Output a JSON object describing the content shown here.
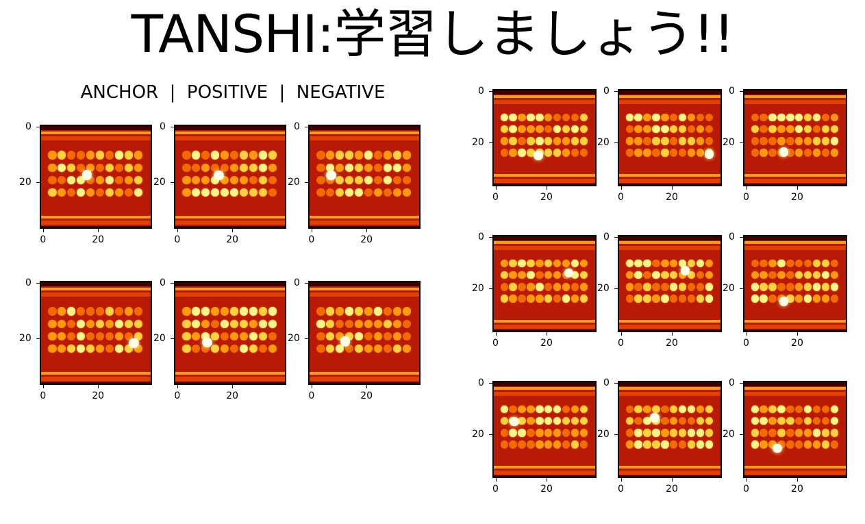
{
  "title": "TANSHI:学習しましょう!!",
  "column_header": "ANCHOR  |  POSITIVE  |  NEGATIVE",
  "axis_ticks": {
    "y": [
      "0",
      "20"
    ],
    "x": [
      "0",
      "20"
    ]
  },
  "colormap": "hot",
  "panels": [
    {
      "group": "left",
      "row": 0,
      "col": 0,
      "role": "anchor"
    },
    {
      "group": "left",
      "row": 0,
      "col": 1,
      "role": "positive"
    },
    {
      "group": "left",
      "row": 0,
      "col": 2,
      "role": "negative"
    },
    {
      "group": "left",
      "row": 1,
      "col": 0,
      "role": "anchor"
    },
    {
      "group": "left",
      "row": 1,
      "col": 1,
      "role": "positive"
    },
    {
      "group": "left",
      "row": 1,
      "col": 2,
      "role": "negative"
    },
    {
      "group": "right",
      "row": 0,
      "col": 0
    },
    {
      "group": "right",
      "row": 0,
      "col": 1
    },
    {
      "group": "right",
      "row": 0,
      "col": 2
    },
    {
      "group": "right",
      "row": 1,
      "col": 0
    },
    {
      "group": "right",
      "row": 1,
      "col": 1
    },
    {
      "group": "right",
      "row": 1,
      "col": 2
    },
    {
      "group": "right",
      "row": 2,
      "col": 0
    },
    {
      "group": "right",
      "row": 2,
      "col": 1
    },
    {
      "group": "right",
      "row": 2,
      "col": 2
    }
  ]
}
